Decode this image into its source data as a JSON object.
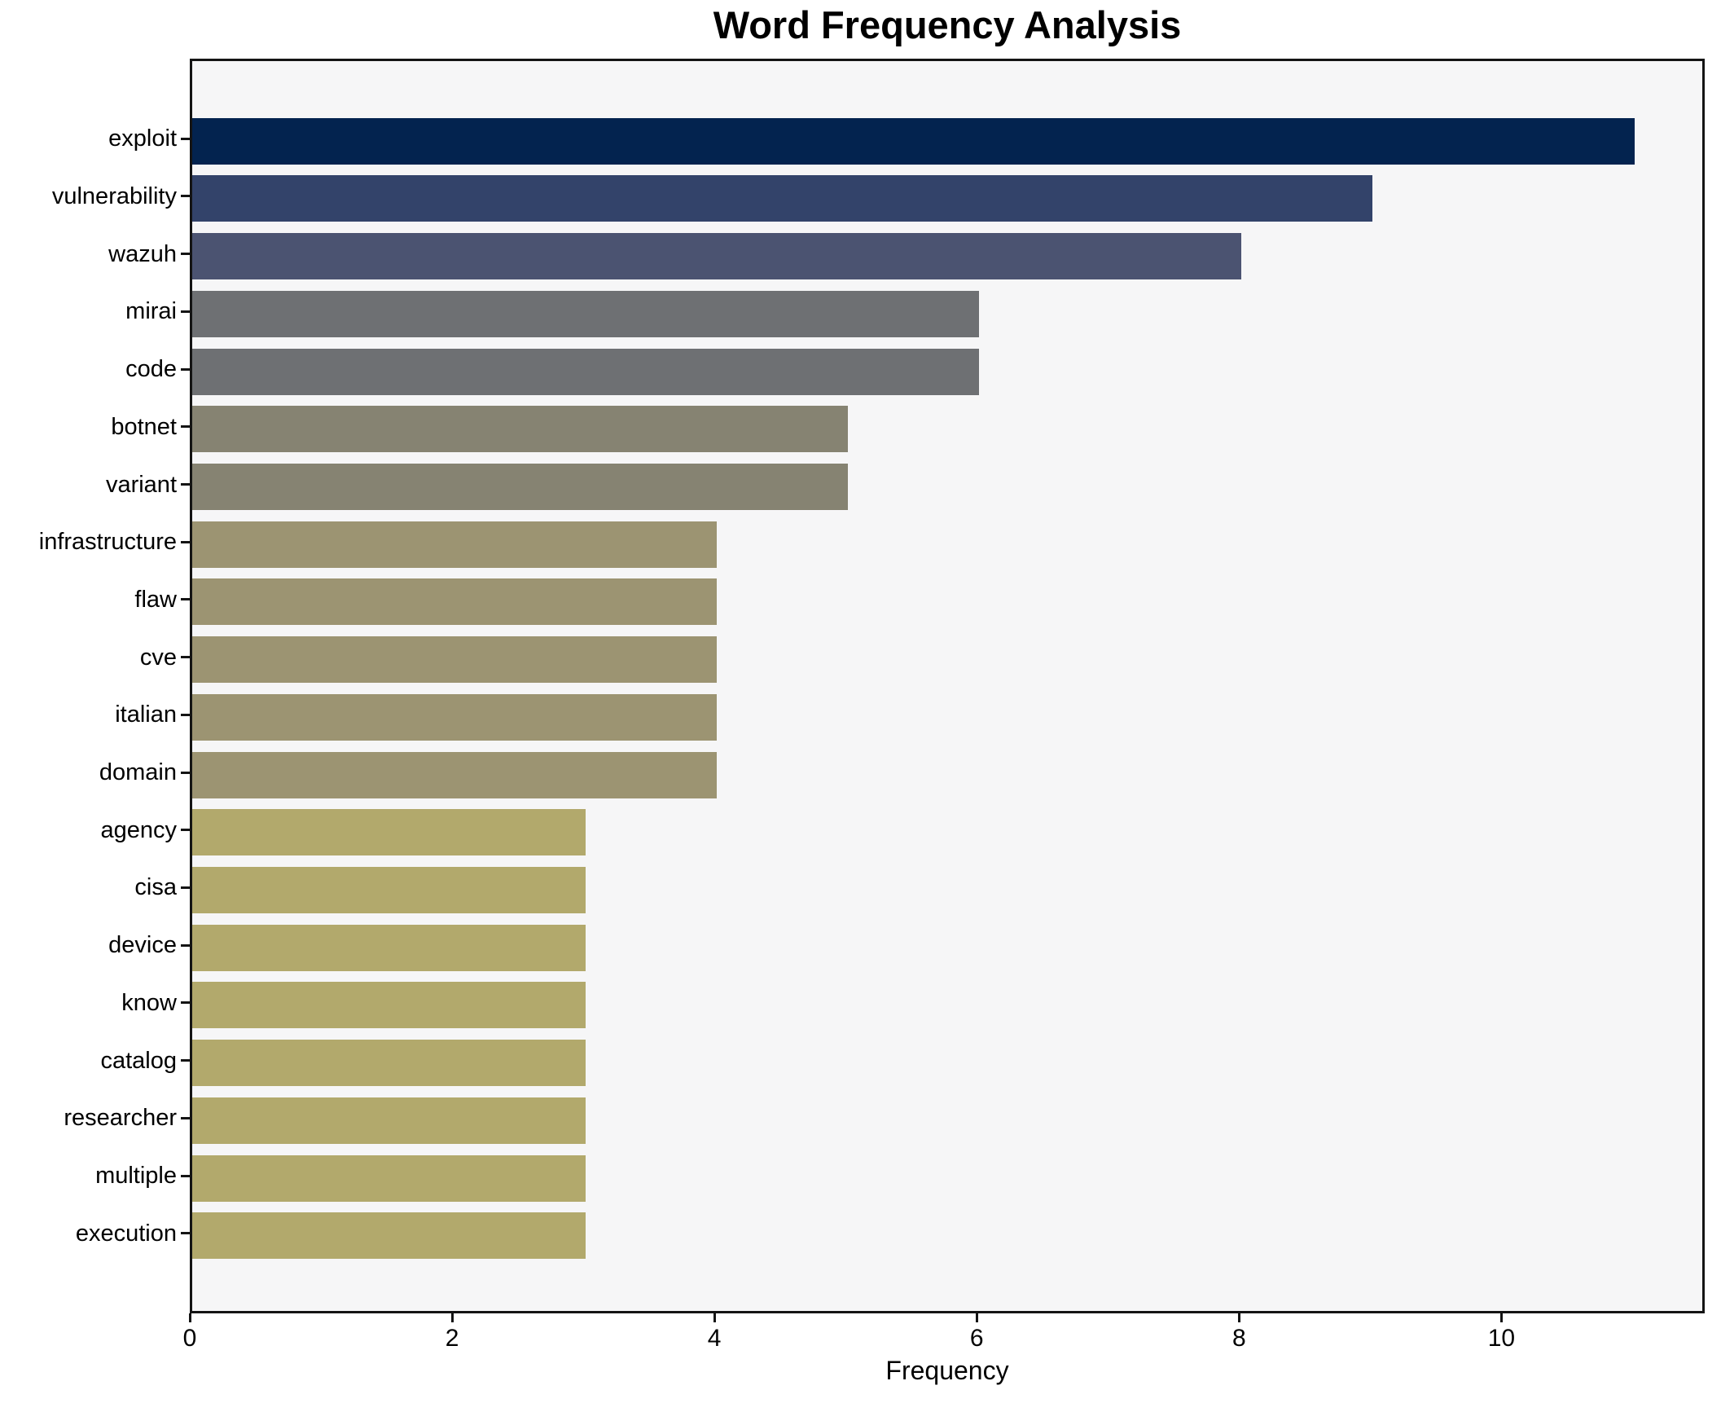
{
  "chart_data": {
    "type": "bar",
    "orientation": "horizontal",
    "title": "Word Frequency Analysis",
    "xlabel": "Frequency",
    "ylabel": "",
    "categories": [
      "exploit",
      "vulnerability",
      "wazuh",
      "mirai",
      "code",
      "botnet",
      "variant",
      "infrastructure",
      "flaw",
      "cve",
      "italian",
      "domain",
      "agency",
      "cisa",
      "device",
      "know",
      "catalog",
      "researcher",
      "multiple",
      "execution"
    ],
    "values": [
      11,
      9,
      8,
      6,
      6,
      5,
      5,
      4,
      4,
      4,
      4,
      4,
      3,
      3,
      3,
      3,
      3,
      3,
      3,
      3
    ],
    "bar_colors": [
      "#03234f",
      "#33436a",
      "#4b5371",
      "#6e7073",
      "#6e7073",
      "#868372",
      "#868372",
      "#9c9472",
      "#9c9472",
      "#9c9472",
      "#9c9472",
      "#9c9472",
      "#b2a96c",
      "#b2a96c",
      "#b2a96c",
      "#b2a96c",
      "#b2a96c",
      "#b2a96c",
      "#b2a96c",
      "#b2a96c"
    ],
    "xlim": [
      0,
      11.55
    ],
    "xticks": [
      0,
      2,
      4,
      6,
      8,
      10
    ],
    "xtick_labels": [
      "0",
      "2",
      "4",
      "6",
      "8",
      "10"
    ],
    "grid": false,
    "legend": "none",
    "plot_background": "#f6f6f7",
    "figure_background": "#ffffff",
    "spine_color": "#141414",
    "text_color": "#000000"
  }
}
